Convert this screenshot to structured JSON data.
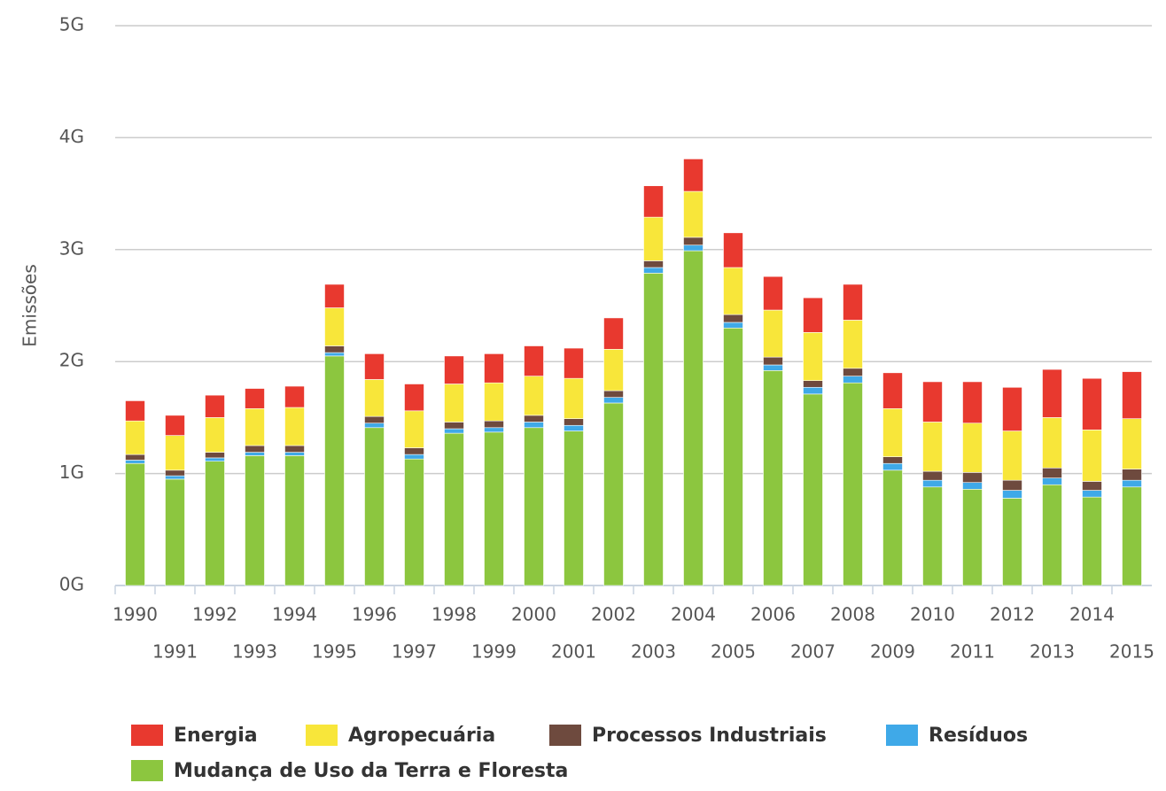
{
  "chart_data": {
    "type": "stacked_bar",
    "y_label": "Emissões",
    "categories": [
      "1990",
      "1991",
      "1992",
      "1993",
      "1994",
      "1995",
      "1996",
      "1997",
      "1998",
      "1999",
      "2000",
      "2001",
      "2002",
      "2003",
      "2004",
      "2005",
      "2006",
      "2007",
      "2008",
      "2009",
      "2010",
      "2011",
      "2012",
      "2013",
      "2014",
      "2015"
    ],
    "series": [
      {
        "name": "Energia",
        "color": "#e8392f",
        "values": [
          0.18,
          0.18,
          0.2,
          0.18,
          0.19,
          0.21,
          0.23,
          0.24,
          0.25,
          0.26,
          0.27,
          0.27,
          0.28,
          0.28,
          0.29,
          0.31,
          0.3,
          0.31,
          0.32,
          0.32,
          0.36,
          0.37,
          0.39,
          0.43,
          0.46,
          0.42
        ]
      },
      {
        "name": "Agropecuária",
        "color": "#f8e63a",
        "values": [
          0.3,
          0.31,
          0.31,
          0.33,
          0.34,
          0.34,
          0.33,
          0.33,
          0.34,
          0.34,
          0.35,
          0.36,
          0.37,
          0.39,
          0.41,
          0.42,
          0.42,
          0.43,
          0.43,
          0.43,
          0.44,
          0.44,
          0.44,
          0.45,
          0.46,
          0.45
        ]
      },
      {
        "name": "Processos Industriais",
        "color": "#6e4a3e",
        "values": [
          0.05,
          0.05,
          0.05,
          0.06,
          0.06,
          0.06,
          0.06,
          0.06,
          0.06,
          0.06,
          0.06,
          0.06,
          0.06,
          0.06,
          0.07,
          0.07,
          0.07,
          0.06,
          0.07,
          0.06,
          0.08,
          0.09,
          0.09,
          0.09,
          0.08,
          0.1
        ]
      },
      {
        "name": "Resíduos",
        "color": "#3fa9e8",
        "values": [
          0.03,
          0.03,
          0.03,
          0.03,
          0.03,
          0.03,
          0.04,
          0.04,
          0.04,
          0.04,
          0.05,
          0.05,
          0.05,
          0.05,
          0.05,
          0.05,
          0.05,
          0.06,
          0.06,
          0.06,
          0.06,
          0.06,
          0.07,
          0.06,
          0.06,
          0.06
        ]
      },
      {
        "name": "Mudança de Uso da Terra e Floresta",
        "color": "#8cc63f",
        "values": [
          1.09,
          0.95,
          1.11,
          1.16,
          1.16,
          2.05,
          1.41,
          1.13,
          1.36,
          1.37,
          1.41,
          1.38,
          1.63,
          2.79,
          2.99,
          2.3,
          1.92,
          1.71,
          1.81,
          1.03,
          0.88,
          0.86,
          0.78,
          0.9,
          0.79,
          0.88
        ]
      }
    ],
    "ylim": [
      0,
      5
    ],
    "yticks": [
      {
        "value": 0,
        "label": "0G"
      },
      {
        "value": 1,
        "label": "1G"
      },
      {
        "value": 2,
        "label": "2G"
      },
      {
        "value": 3,
        "label": "3G"
      },
      {
        "value": 4,
        "label": "4G"
      },
      {
        "value": 5,
        "label": "5G"
      }
    ],
    "grid": true
  }
}
